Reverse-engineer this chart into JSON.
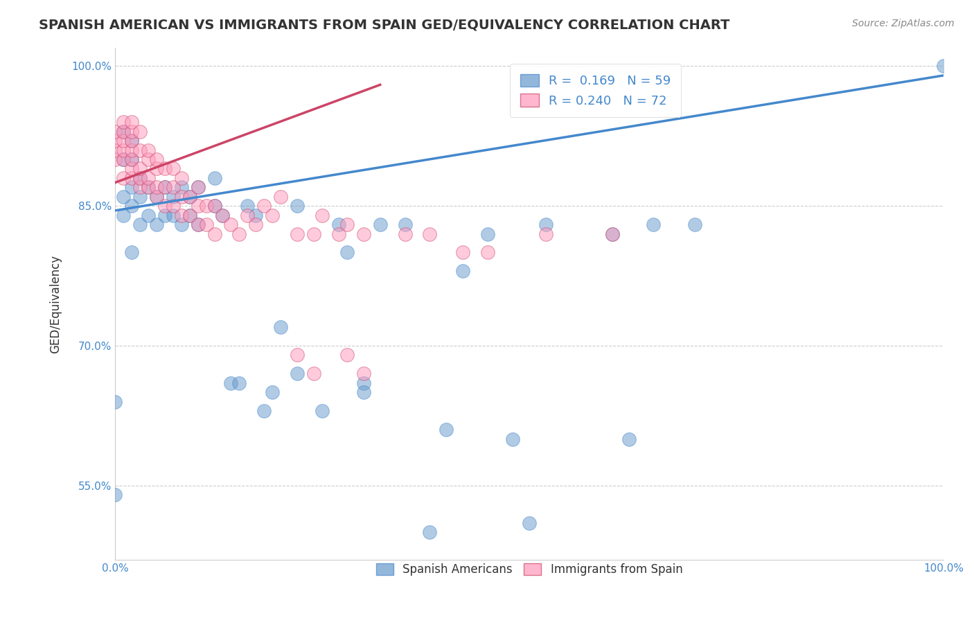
{
  "title": "SPANISH AMERICAN VS IMMIGRANTS FROM SPAIN GED/EQUIVALENCY CORRELATION CHART",
  "source": "Source: ZipAtlas.com",
  "ylabel": "GED/Equivalency",
  "xlabel": "",
  "xlim": [
    0,
    1.0
  ],
  "ylim": [
    0.47,
    1.02
  ],
  "yticks": [
    0.55,
    0.7,
    0.85,
    1.0
  ],
  "ytick_labels": [
    "55.0%",
    "70.0%",
    "85.0%",
    "100.0%"
  ],
  "xticks": [
    0.0,
    0.25,
    0.5,
    0.75,
    1.0
  ],
  "xtick_labels": [
    "0.0%",
    "",
    "",
    "",
    "100.0%"
  ],
  "legend_r_blue": "R =  0.169",
  "legend_n_blue": "N = 59",
  "legend_r_pink": "R = 0.240",
  "legend_n_pink": "N = 72",
  "blue_color": "#6699cc",
  "pink_color": "#ff99bb",
  "trendline_blue_color": "#4488cc",
  "trendline_pink_color": "#cc4466",
  "background_color": "#ffffff",
  "grid_color": "#cccccc",
  "title_color": "#333333",
  "source_color": "#888888",
  "blue_scatter_x": [
    0.0,
    0.0,
    0.01,
    0.01,
    0.01,
    0.01,
    0.02,
    0.02,
    0.02,
    0.02,
    0.02,
    0.03,
    0.03,
    0.03,
    0.04,
    0.04,
    0.05,
    0.05,
    0.06,
    0.06,
    0.07,
    0.07,
    0.08,
    0.08,
    0.09,
    0.09,
    0.1,
    0.1,
    0.12,
    0.12,
    0.13,
    0.14,
    0.15,
    0.16,
    0.17,
    0.18,
    0.19,
    0.2,
    0.22,
    0.22,
    0.25,
    0.27,
    0.28,
    0.3,
    0.3,
    0.32,
    0.35,
    0.38,
    0.4,
    0.42,
    0.45,
    0.48,
    0.5,
    0.52,
    0.6,
    0.62,
    0.65,
    0.7,
    1.0
  ],
  "blue_scatter_y": [
    0.64,
    0.54,
    0.84,
    0.86,
    0.9,
    0.93,
    0.8,
    0.85,
    0.87,
    0.9,
    0.92,
    0.83,
    0.86,
    0.88,
    0.84,
    0.87,
    0.83,
    0.86,
    0.84,
    0.87,
    0.84,
    0.86,
    0.83,
    0.87,
    0.84,
    0.86,
    0.83,
    0.87,
    0.85,
    0.88,
    0.84,
    0.66,
    0.66,
    0.85,
    0.84,
    0.63,
    0.65,
    0.72,
    0.67,
    0.85,
    0.63,
    0.83,
    0.8,
    0.66,
    0.65,
    0.83,
    0.83,
    0.5,
    0.61,
    0.78,
    0.82,
    0.6,
    0.51,
    0.83,
    0.82,
    0.6,
    0.83,
    0.83,
    1.0
  ],
  "pink_scatter_x": [
    0.0,
    0.0,
    0.0,
    0.0,
    0.01,
    0.01,
    0.01,
    0.01,
    0.01,
    0.01,
    0.02,
    0.02,
    0.02,
    0.02,
    0.02,
    0.02,
    0.02,
    0.03,
    0.03,
    0.03,
    0.03,
    0.03,
    0.04,
    0.04,
    0.04,
    0.04,
    0.05,
    0.05,
    0.05,
    0.05,
    0.06,
    0.06,
    0.06,
    0.07,
    0.07,
    0.07,
    0.08,
    0.08,
    0.08,
    0.09,
    0.09,
    0.1,
    0.1,
    0.1,
    0.11,
    0.11,
    0.12,
    0.12,
    0.13,
    0.14,
    0.15,
    0.16,
    0.17,
    0.18,
    0.19,
    0.2,
    0.22,
    0.24,
    0.25,
    0.27,
    0.28,
    0.3,
    0.35,
    0.38,
    0.42,
    0.45,
    0.52,
    0.6,
    0.22,
    0.24,
    0.28,
    0.3
  ],
  "pink_scatter_y": [
    0.9,
    0.91,
    0.92,
    0.93,
    0.88,
    0.9,
    0.91,
    0.92,
    0.93,
    0.94,
    0.88,
    0.89,
    0.9,
    0.91,
    0.92,
    0.93,
    0.94,
    0.87,
    0.88,
    0.89,
    0.91,
    0.93,
    0.87,
    0.88,
    0.9,
    0.91,
    0.86,
    0.87,
    0.89,
    0.9,
    0.85,
    0.87,
    0.89,
    0.85,
    0.87,
    0.89,
    0.84,
    0.86,
    0.88,
    0.84,
    0.86,
    0.83,
    0.85,
    0.87,
    0.83,
    0.85,
    0.82,
    0.85,
    0.84,
    0.83,
    0.82,
    0.84,
    0.83,
    0.85,
    0.84,
    0.86,
    0.82,
    0.82,
    0.84,
    0.82,
    0.83,
    0.82,
    0.82,
    0.82,
    0.8,
    0.8,
    0.82,
    0.82,
    0.69,
    0.67,
    0.69,
    0.67
  ],
  "blue_trend_x": [
    0.0,
    1.0
  ],
  "blue_trend_y": [
    0.845,
    0.99
  ],
  "pink_trend_x": [
    0.0,
    0.32
  ],
  "pink_trend_y": [
    0.875,
    0.98
  ]
}
